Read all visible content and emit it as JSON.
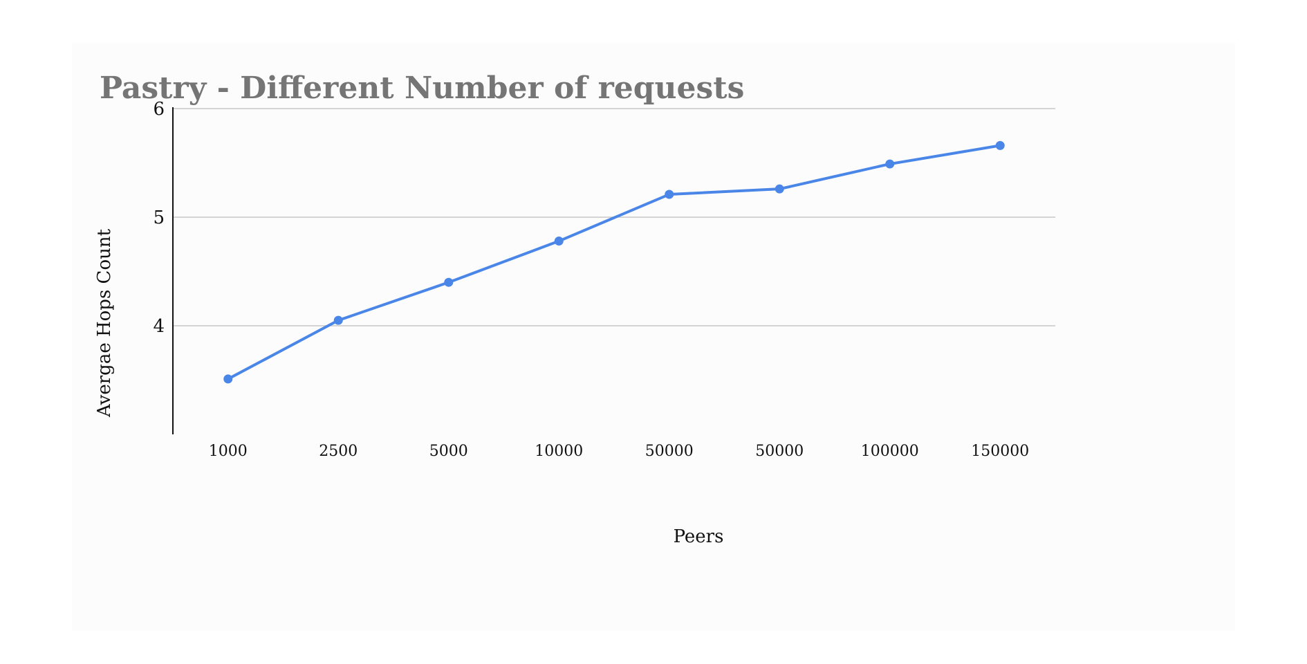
{
  "chart_data": {
    "type": "line",
    "title": "Pastry - Different Number of requests",
    "xlabel": "Peers",
    "ylabel": "Avergae Hops Count",
    "categories": [
      "1000",
      "2500",
      "5000",
      "10000",
      "50000",
      "50000",
      "100000",
      "150000"
    ],
    "series": [
      {
        "values": [
          3.51,
          4.05,
          4.4,
          4.78,
          5.21,
          5.26,
          5.49,
          5.66
        ]
      }
    ],
    "ylim": [
      3,
      6
    ],
    "yticks": [
      "4",
      "5",
      "6"
    ],
    "grid": true,
    "line_color": "#4a86e8",
    "grid_color": "#c6c6c6"
  }
}
